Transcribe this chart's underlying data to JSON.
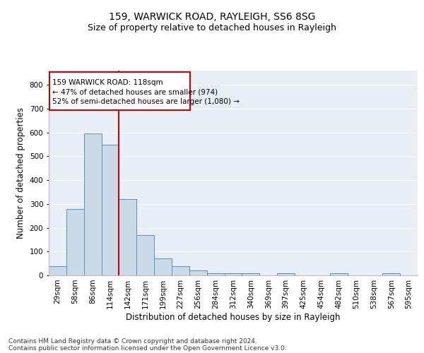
{
  "title1": "159, WARWICK ROAD, RAYLEIGH, SS6 8SG",
  "title2": "Size of property relative to detached houses in Rayleigh",
  "xlabel": "Distribution of detached houses by size in Rayleigh",
  "ylabel": "Number of detached properties",
  "categories": [
    "29sqm",
    "58sqm",
    "86sqm",
    "114sqm",
    "142sqm",
    "171sqm",
    "199sqm",
    "227sqm",
    "256sqm",
    "284sqm",
    "312sqm",
    "340sqm",
    "369sqm",
    "397sqm",
    "425sqm",
    "454sqm",
    "482sqm",
    "510sqm",
    "538sqm",
    "567sqm",
    "595sqm"
  ],
  "values": [
    38,
    280,
    595,
    550,
    320,
    170,
    70,
    38,
    20,
    10,
    8,
    8,
    0,
    8,
    0,
    0,
    8,
    0,
    0,
    8,
    0
  ],
  "bar_color": "#c9d9e8",
  "bar_edge_color": "#5a8fc0",
  "property_line_x": 3.5,
  "annotation_line1": "159 WARWICK ROAD: 118sqm",
  "annotation_line2": "← 47% of detached houses are smaller (974)",
  "annotation_line3": "52% of semi-detached houses are larger (1,080) →",
  "annotation_box_color": "#ffffff",
  "annotation_box_edge": "#cc0000",
  "red_line_color": "#cc0000",
  "footer_line1": "Contains HM Land Registry data © Crown copyright and database right 2024.",
  "footer_line2": "Contains public sector information licensed under the Open Government Licence v3.0.",
  "ylim": [
    0,
    860
  ],
  "yticks": [
    0,
    100,
    200,
    300,
    400,
    500,
    600,
    700,
    800
  ],
  "background_color": "#e8eef5",
  "fig_background": "#ffffff",
  "grid_color": "#ffffff",
  "title1_fontsize": 10,
  "title2_fontsize": 9,
  "xlabel_fontsize": 8.5,
  "ylabel_fontsize": 8.5,
  "tick_fontsize": 7.5,
  "annot_fontsize": 7.5,
  "footer_fontsize": 6.5
}
